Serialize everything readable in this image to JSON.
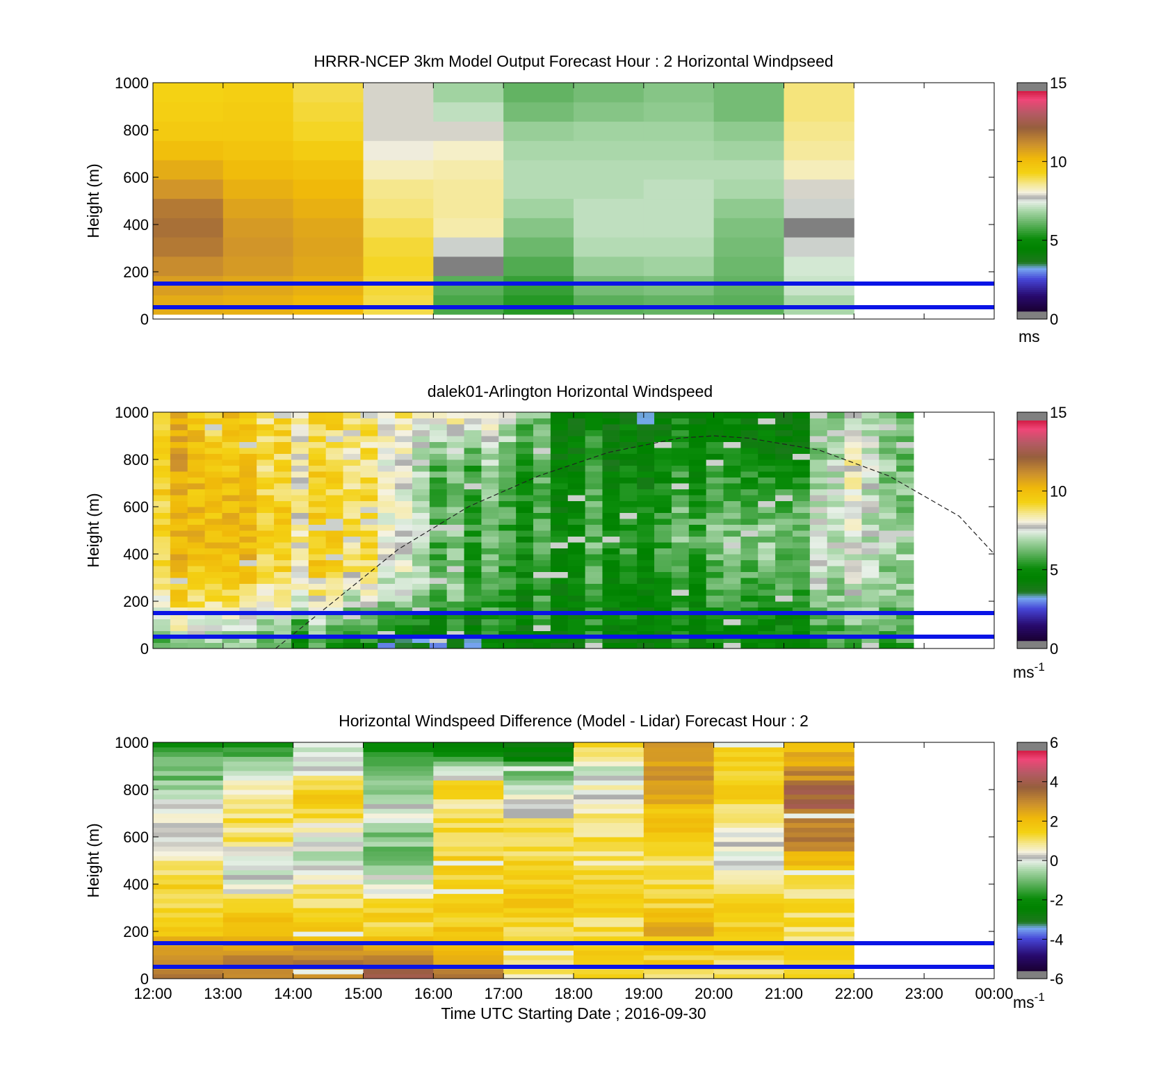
{
  "figure": {
    "xlabel": "Time UTC  Starting Date ; 2016-09-30",
    "x_ticks": [
      "12:00",
      "13:00",
      "14:00",
      "15:00",
      "16:00",
      "17:00",
      "18:00",
      "19:00",
      "20:00",
      "21:00",
      "22:00",
      "23:00",
      "00:00"
    ]
  },
  "chart_data": [
    {
      "type": "heatmap",
      "title": "HRRR-NCEP 3km Model Output   Forecast Hour : 2 Horizontal Windpseed",
      "ylabel": "Height (m)",
      "xlim_hours": [
        12,
        24
      ],
      "ylim": [
        0,
        1000
      ],
      "y_ticks": [
        "0",
        "200",
        "400",
        "600",
        "800",
        "1000"
      ],
      "colorbar": {
        "min": 0,
        "max": 15,
        "ticks": [
          "0",
          "5",
          "10",
          "15"
        ],
        "unit": "ms"
      },
      "reference_heights_m": [
        150,
        50
      ],
      "reference_color": "#0a14e6",
      "columns": [
        {
          "start": 12,
          "end": 13,
          "values": [
            10.5,
            10.8,
            11.2,
            11.6,
            11.8,
            11.6,
            11.0,
            10.5,
            10.0,
            9.6,
            9.4,
            9.3
          ]
        },
        {
          "start": 13,
          "end": 14,
          "values": [
            10.4,
            10.6,
            10.9,
            11.0,
            10.9,
            10.7,
            10.4,
            10.1,
            9.8,
            9.6,
            9.5,
            9.4
          ]
        },
        {
          "start": 14,
          "end": 15,
          "values": [
            10.2,
            10.4,
            10.6,
            10.7,
            10.6,
            10.4,
            10.2,
            9.9,
            9.5,
            9.2,
            9.1,
            9.0
          ]
        },
        {
          "start": 15,
          "end": 16,
          "values": [
            9.0,
            9.1,
            9.2,
            9.1,
            8.9,
            8.7,
            8.6,
            8.3,
            8.0,
            7.9,
            7.9,
            7.9
          ]
        },
        {
          "start": 16,
          "end": 17,
          "values": [
            5.8,
            6.0,
            14.6,
            7.6,
            8.4,
            8.5,
            8.5,
            8.4,
            8.2,
            7.9,
            7.1,
            6.8
          ]
        },
        {
          "start": 17,
          "end": 18,
          "values": [
            5.4,
            5.6,
            5.9,
            6.2,
            6.5,
            6.8,
            7.0,
            7.0,
            6.9,
            6.7,
            6.3,
            6.1
          ]
        },
        {
          "start": 18,
          "end": 19,
          "values": [
            6.0,
            6.3,
            6.7,
            7.0,
            7.1,
            7.1,
            7.0,
            7.0,
            6.9,
            6.8,
            6.5,
            6.3
          ]
        },
        {
          "start": 19,
          "end": 20,
          "values": [
            6.1,
            6.4,
            6.8,
            7.0,
            7.1,
            7.1,
            7.1,
            7.0,
            6.9,
            6.8,
            6.6,
            6.5
          ]
        },
        {
          "start": 20,
          "end": 21,
          "values": [
            6.0,
            6.1,
            6.2,
            6.3,
            6.4,
            6.6,
            6.9,
            7.0,
            6.8,
            6.6,
            6.3,
            6.3
          ]
        },
        {
          "start": 21,
          "end": 22,
          "values": [
            6.9,
            7.2,
            7.3,
            7.6,
            14.6,
            7.6,
            7.9,
            8.3,
            8.5,
            8.6,
            8.7,
            8.7
          ]
        }
      ]
    },
    {
      "type": "heatmap",
      "title": "dalek01-Arlington  Horizontal Windspeed",
      "ylabel": "Height (m)",
      "xlim_hours": [
        12,
        24
      ],
      "ylim": [
        0,
        1000
      ],
      "y_ticks": [
        "0",
        "200",
        "400",
        "600",
        "800",
        "1000"
      ],
      "colorbar": {
        "min": 0,
        "max": 15,
        "ticks": [
          "0",
          "5",
          "10",
          "15"
        ],
        "unit": "ms",
        "unit_exp": "-1"
      },
      "reference_heights_m": [
        150,
        50
      ],
      "reference_color": "#0a14e6",
      "curve": {
        "style": "dashed",
        "x_hours": [
          13.75,
          14.5,
          15.5,
          16.5,
          17.5,
          18.5,
          19.5,
          20.0,
          20.5,
          21.5,
          22.5,
          23.5,
          24.0
        ],
        "y_m": [
          0,
          180,
          420,
          600,
          730,
          830,
          890,
          900,
          890,
          840,
          730,
          560,
          400
        ]
      },
      "grid": {
        "start_hour": 12,
        "end_hour": 22.85,
        "columns": 44,
        "rows": 40,
        "profile_keys_hour": [
          12,
          13,
          14,
          15,
          15.5,
          16,
          17,
          18,
          19,
          20,
          21,
          22,
          22.85
        ],
        "profile_values": [
          [
            6.5,
            8.0,
            9.2,
            9.6,
            10.0,
            10.2,
            10.3,
            10.4,
            10.3,
            10.2
          ],
          [
            6.0,
            7.0,
            8.6,
            9.3,
            9.6,
            9.4,
            9.3,
            9.2,
            9.0,
            9.1
          ],
          [
            5.5,
            6.6,
            8.2,
            9.0,
            9.2,
            9.1,
            9.0,
            8.9,
            8.8,
            8.8
          ],
          [
            4.6,
            5.5,
            7.2,
            8.3,
            8.6,
            8.5,
            8.4,
            8.2,
            8.1,
            8.3
          ],
          [
            3.0,
            5.0,
            6.6,
            7.4,
            7.6,
            7.5,
            7.3,
            7.2,
            7.6,
            8.2
          ],
          [
            3.3,
            4.8,
            6.0,
            6.4,
            6.3,
            6.1,
            6.0,
            6.2,
            7.0,
            8.1
          ],
          [
            4.2,
            4.7,
            5.2,
            5.3,
            5.4,
            5.5,
            5.6,
            5.9,
            6.6,
            7.8
          ],
          [
            4.6,
            4.8,
            5.1,
            5.3,
            5.4,
            5.3,
            5.2,
            4.9,
            4.6,
            4.6
          ],
          [
            4.7,
            4.8,
            5.1,
            5.4,
            5.6,
            5.5,
            5.2,
            4.8,
            4.5,
            4.3
          ],
          [
            4.8,
            5.0,
            5.5,
            5.9,
            6.3,
            6.2,
            5.7,
            5.0,
            4.6,
            4.5
          ],
          [
            5.0,
            5.3,
            6.0,
            6.6,
            6.9,
            6.7,
            6.1,
            5.1,
            4.4,
            4.8
          ],
          [
            5.6,
            6.1,
            6.7,
            7.0,
            7.2,
            7.3,
            7.4,
            7.6,
            7.8,
            7.0
          ],
          [
            6.0,
            6.3,
            6.7,
            6.9,
            6.8,
            6.6,
            6.4,
            6.2,
            6.0,
            6.0
          ]
        ]
      }
    },
    {
      "type": "heatmap",
      "title": "Horizontal Windspeed Difference (Model - Lidar) Forecast Hour : 2",
      "ylabel": "Height (m)",
      "xlim_hours": [
        12,
        24
      ],
      "ylim": [
        0,
        1000
      ],
      "y_ticks": [
        "0",
        "200",
        "400",
        "600",
        "800",
        "1000"
      ],
      "colorbar": {
        "min": -6,
        "max": 6,
        "ticks": [
          "-6",
          "-4",
          "-2",
          "0",
          "2",
          "4",
          "6"
        ],
        "unit": "ms",
        "unit_exp": "-1"
      },
      "reference_heights_m": [
        150,
        50
      ],
      "reference_color": "#0a14e6",
      "columns": [
        {
          "start": 12,
          "end": 13,
          "keys": [
            3.0,
            2.6,
            1.6,
            1.2,
            1.4,
            1.0,
            0.4,
            0.2,
            -0.6,
            -1.2,
            -1.6
          ]
        },
        {
          "start": 13,
          "end": 14,
          "keys": [
            3.4,
            3.0,
            2.2,
            1.4,
            0.2,
            -0.2,
            1.2,
            1.0,
            0.8,
            -0.8,
            -1.8
          ]
        },
        {
          "start": 14,
          "end": 15,
          "keys": [
            3.2,
            2.8,
            2.0,
            1.4,
            0.6,
            -0.4,
            0.1,
            1.2,
            1.6,
            0.2,
            -0.4
          ]
        },
        {
          "start": 15,
          "end": 16,
          "keys": [
            4.4,
            2.8,
            1.6,
            1.2,
            0.2,
            -1.0,
            -0.8,
            0.0,
            -0.6,
            -1.2,
            -2.4
          ]
        },
        {
          "start": 16,
          "end": 17,
          "keys": [
            3.0,
            2.4,
            1.8,
            1.6,
            1.6,
            1.5,
            1.2,
            1.0,
            1.4,
            0.0,
            -2.6
          ]
        },
        {
          "start": 17,
          "end": 18,
          "keys": [
            0.6,
            1.4,
            1.4,
            2.0,
            1.8,
            1.4,
            1.2,
            0.6,
            0.0,
            -1.2,
            -3.0
          ]
        },
        {
          "start": 18,
          "end": 19,
          "keys": [
            1.2,
            1.4,
            1.2,
            1.4,
            1.2,
            1.0,
            1.0,
            0.8,
            0.4,
            0.0,
            1.2
          ]
        },
        {
          "start": 19,
          "end": 20,
          "keys": [
            1.4,
            1.6,
            2.2,
            1.6,
            1.4,
            1.2,
            1.6,
            1.8,
            2.4,
            2.8,
            3.0
          ]
        },
        {
          "start": 20,
          "end": 21,
          "keys": [
            1.4,
            1.4,
            1.6,
            1.4,
            1.2,
            -0.2,
            0.4,
            1.2,
            1.4,
            1.6,
            1.6
          ]
        },
        {
          "start": 21,
          "end": 22,
          "keys": [
            1.2,
            1.2,
            1.2,
            1.0,
            1.4,
            2.4,
            3.0,
            3.6,
            3.6,
            2.6,
            1.8
          ]
        }
      ]
    }
  ]
}
